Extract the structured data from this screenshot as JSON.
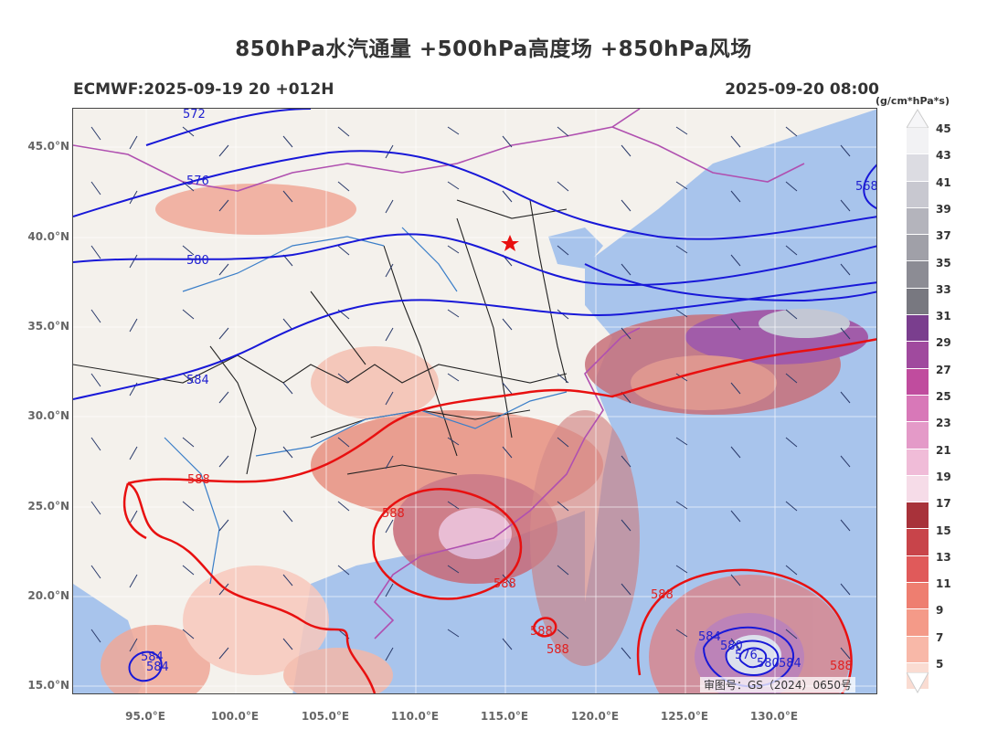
{
  "title": "850hPa水汽通量 +500hPa高度场 +850hPa风场",
  "subtitle_left": "ECMWF:2025-09-19 20 +012H",
  "subtitle_right": "2025-09-20 08:00",
  "unit": "(g/cm*hPa*s)",
  "lat_ticks": [
    "45.0°N",
    "40.0°N",
    "35.0°N",
    "30.0°N",
    "25.0°N",
    "20.0°N",
    "15.0°N"
  ],
  "lon_ticks": [
    "95.0°E",
    "100.0°E",
    "105.0°E",
    "110.0°E",
    "115.0°E",
    "120.0°E",
    "125.0°E",
    "130.0°E"
  ],
  "colorbar": {
    "labels": [
      "45",
      "43",
      "41",
      "39",
      "37",
      "35",
      "33",
      "31",
      "29",
      "27",
      "25",
      "23",
      "21",
      "19",
      "17",
      "15",
      "13",
      "11",
      "9",
      "7",
      "5"
    ],
    "colors": [
      "#f2f2f4",
      "#dcdce2",
      "#c8c8d0",
      "#b4b4bc",
      "#a0a0a8",
      "#8c8c94",
      "#787880",
      "#7a3e8e",
      "#a04a9e",
      "#c04c9e",
      "#d878b8",
      "#e49ac8",
      "#f0bcd8",
      "#f6dce8",
      "#a8323a",
      "#c8444a",
      "#e05a5a",
      "#ee7e70",
      "#f49a88",
      "#f8b8a8",
      "#fadcd2"
    ]
  },
  "contour_labels_red": [
    "588",
    "588",
    "588",
    "588",
    "588",
    "588",
    "588"
  ],
  "contour_labels_blue": [
    "572",
    "576",
    "580",
    "584",
    "568",
    "584",
    "584",
    "584",
    "580",
    "576",
    "580",
    "584"
  ],
  "stamp": "审图号：GS（2024）0650号",
  "colors": {
    "contour_red": "#e81010",
    "contour_blue": "#1818d8",
    "ocean": "#a8c4ec",
    "land": "#f4f1ec"
  }
}
